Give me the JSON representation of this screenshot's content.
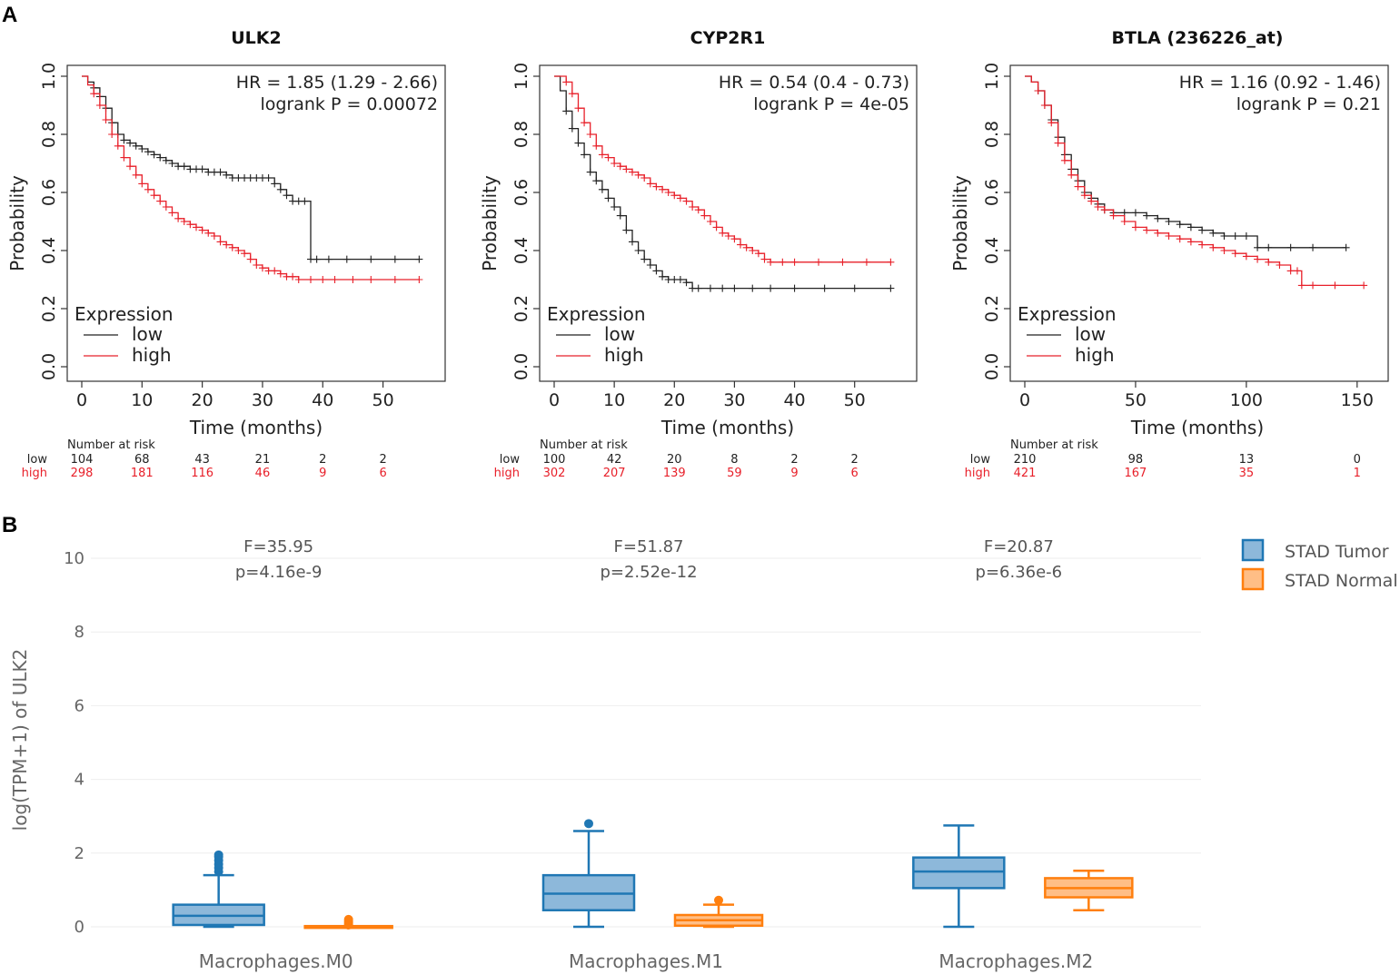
{
  "panels": {
    "a": "A",
    "b": "B"
  },
  "colors": {
    "low": "#222222",
    "high": "#e8202a",
    "tumor": "#1f77b4",
    "tumor_fill": "#8db8da",
    "normal": "#ff7f0e",
    "normal_fill": "#ffbe86"
  },
  "chart_data": [
    {
      "type": "line",
      "title": "ULK2",
      "xlabel": "Time (months)",
      "ylabel": "Probability",
      "xlim": [
        0,
        57
      ],
      "ylim": [
        0,
        1
      ],
      "xticks": [
        0,
        10,
        20,
        30,
        40,
        50
      ],
      "yticks": [
        "0.0",
        "0.2",
        "0.4",
        "0.6",
        "0.8",
        "1.0"
      ],
      "hr_text": "HR = 1.85 (1.29 - 2.66)",
      "p_text": "logrank P = 0.00072",
      "legend_title": "Expression",
      "legend": [
        "low",
        "high"
      ],
      "risk_title": "Number at risk",
      "risk_rows": [
        "low",
        "high"
      ],
      "risk_x": [
        0,
        10,
        20,
        30,
        40,
        50
      ],
      "risk_low": [
        "104",
        "68",
        "43",
        "21",
        "2",
        "2"
      ],
      "risk_high": [
        "298",
        "181",
        "116",
        "46",
        "9",
        "6"
      ],
      "series": [
        {
          "name": "low",
          "x": [
            0,
            1,
            2,
            3,
            4,
            5,
            6,
            7,
            8,
            9,
            10,
            11,
            12,
            13,
            14,
            15,
            16,
            17,
            18,
            19,
            20,
            21,
            22,
            23,
            24,
            25,
            26,
            27,
            28,
            29,
            30,
            31,
            32,
            33,
            34,
            35,
            36,
            37,
            38,
            39,
            41,
            44,
            48,
            52,
            56
          ],
          "y": [
            1.0,
            0.98,
            0.96,
            0.93,
            0.89,
            0.84,
            0.8,
            0.78,
            0.77,
            0.76,
            0.75,
            0.74,
            0.73,
            0.72,
            0.71,
            0.7,
            0.69,
            0.69,
            0.68,
            0.68,
            0.68,
            0.67,
            0.67,
            0.67,
            0.66,
            0.65,
            0.65,
            0.65,
            0.65,
            0.65,
            0.65,
            0.65,
            0.63,
            0.61,
            0.59,
            0.57,
            0.57,
            0.57,
            0.37,
            0.37,
            0.37,
            0.37,
            0.37,
            0.37,
            0.37
          ]
        },
        {
          "name": "high",
          "x": [
            0,
            1,
            2,
            3,
            4,
            5,
            6,
            7,
            8,
            9,
            10,
            11,
            12,
            13,
            14,
            15,
            16,
            17,
            18,
            19,
            20,
            21,
            22,
            23,
            24,
            25,
            26,
            27,
            28,
            29,
            30,
            31,
            32,
            33,
            34,
            35,
            36,
            38,
            40,
            42,
            45,
            48,
            52,
            56
          ],
          "y": [
            1.0,
            0.97,
            0.94,
            0.9,
            0.85,
            0.8,
            0.76,
            0.72,
            0.69,
            0.66,
            0.63,
            0.61,
            0.59,
            0.57,
            0.55,
            0.53,
            0.51,
            0.5,
            0.49,
            0.48,
            0.47,
            0.46,
            0.45,
            0.43,
            0.42,
            0.41,
            0.4,
            0.39,
            0.37,
            0.35,
            0.34,
            0.33,
            0.33,
            0.32,
            0.31,
            0.31,
            0.3,
            0.3,
            0.3,
            0.3,
            0.3,
            0.3,
            0.3,
            0.3
          ]
        }
      ]
    },
    {
      "type": "line",
      "title": "CYP2R1",
      "xlabel": "Time (months)",
      "ylabel": "Probability",
      "xlim": [
        0,
        57
      ],
      "ylim": [
        0,
        1
      ],
      "xticks": [
        0,
        10,
        20,
        30,
        40,
        50
      ],
      "yticks": [
        "0.0",
        "0.2",
        "0.4",
        "0.6",
        "0.8",
        "1.0"
      ],
      "hr_text": "HR = 0.54 (0.4 - 0.73)",
      "p_text": "logrank P = 4e-05",
      "legend_title": "Expression",
      "legend": [
        "low",
        "high"
      ],
      "risk_title": "Number at risk",
      "risk_rows": [
        "low",
        "high"
      ],
      "risk_x": [
        0,
        10,
        20,
        30,
        40,
        50
      ],
      "risk_low": [
        "100",
        "42",
        "20",
        "8",
        "2",
        "2"
      ],
      "risk_high": [
        "302",
        "207",
        "139",
        "59",
        "9",
        "6"
      ],
      "series": [
        {
          "name": "low",
          "x": [
            0,
            1,
            2,
            3,
            4,
            5,
            6,
            7,
            8,
            9,
            10,
            11,
            12,
            13,
            14,
            15,
            16,
            17,
            18,
            19,
            20,
            21,
            22,
            23,
            24,
            26,
            28,
            30,
            33,
            36,
            40,
            45,
            50,
            56
          ],
          "y": [
            1.0,
            0.95,
            0.88,
            0.82,
            0.77,
            0.73,
            0.67,
            0.64,
            0.61,
            0.58,
            0.55,
            0.52,
            0.47,
            0.43,
            0.4,
            0.37,
            0.35,
            0.33,
            0.31,
            0.3,
            0.3,
            0.3,
            0.29,
            0.27,
            0.27,
            0.27,
            0.27,
            0.27,
            0.27,
            0.27,
            0.27,
            0.27,
            0.27,
            0.27
          ]
        },
        {
          "name": "high",
          "x": [
            0,
            1,
            2,
            3,
            4,
            5,
            6,
            7,
            8,
            9,
            10,
            11,
            12,
            13,
            14,
            15,
            16,
            17,
            18,
            19,
            20,
            21,
            22,
            23,
            24,
            25,
            26,
            27,
            28,
            29,
            30,
            31,
            32,
            33,
            34,
            35,
            36,
            38,
            40,
            44,
            48,
            52,
            56
          ],
          "y": [
            1.0,
            1.0,
            0.98,
            0.94,
            0.89,
            0.84,
            0.8,
            0.76,
            0.73,
            0.72,
            0.7,
            0.69,
            0.68,
            0.67,
            0.66,
            0.65,
            0.63,
            0.62,
            0.61,
            0.6,
            0.59,
            0.58,
            0.57,
            0.55,
            0.54,
            0.52,
            0.5,
            0.48,
            0.46,
            0.45,
            0.44,
            0.42,
            0.41,
            0.4,
            0.39,
            0.37,
            0.36,
            0.36,
            0.36,
            0.36,
            0.36,
            0.36,
            0.36
          ]
        }
      ]
    },
    {
      "type": "line",
      "title": "BTLA (236226_at)",
      "xlabel": "Time (months)",
      "ylabel": "Probability",
      "xlim": [
        0,
        155
      ],
      "ylim": [
        0,
        1
      ],
      "xticks": [
        0,
        50,
        100,
        150
      ],
      "yticks": [
        "0.0",
        "0.2",
        "0.4",
        "0.6",
        "0.8",
        "1.0"
      ],
      "hr_text": "HR = 1.16 (0.92 - 1.46)",
      "p_text": "logrank P = 0.21",
      "legend_title": "Expression",
      "legend": [
        "low",
        "high"
      ],
      "risk_title": "Number at risk",
      "risk_rows": [
        "low",
        "high"
      ],
      "risk_x": [
        0,
        50,
        100,
        150
      ],
      "risk_low": [
        "210",
        "98",
        "13",
        "0"
      ],
      "risk_high": [
        "421",
        "167",
        "35",
        "1"
      ],
      "series": [
        {
          "name": "low",
          "x": [
            0,
            3,
            6,
            9,
            12,
            15,
            18,
            21,
            24,
            27,
            30,
            33,
            36,
            40,
            45,
            50,
            55,
            60,
            65,
            70,
            75,
            80,
            85,
            90,
            95,
            100,
            105,
            110,
            120,
            130,
            145
          ],
          "y": [
            1.0,
            0.98,
            0.95,
            0.9,
            0.85,
            0.79,
            0.73,
            0.68,
            0.64,
            0.6,
            0.58,
            0.56,
            0.54,
            0.53,
            0.53,
            0.53,
            0.52,
            0.51,
            0.5,
            0.49,
            0.48,
            0.47,
            0.46,
            0.45,
            0.45,
            0.45,
            0.41,
            0.41,
            0.41,
            0.41,
            0.41
          ]
        },
        {
          "name": "high",
          "x": [
            0,
            3,
            6,
            9,
            12,
            15,
            18,
            21,
            24,
            27,
            30,
            33,
            36,
            40,
            45,
            50,
            55,
            60,
            65,
            70,
            75,
            80,
            85,
            90,
            95,
            100,
            105,
            110,
            115,
            120,
            123,
            125,
            130,
            140,
            153
          ],
          "y": [
            1.0,
            0.98,
            0.95,
            0.9,
            0.84,
            0.77,
            0.71,
            0.66,
            0.62,
            0.59,
            0.57,
            0.55,
            0.54,
            0.52,
            0.5,
            0.48,
            0.47,
            0.46,
            0.45,
            0.44,
            0.43,
            0.42,
            0.41,
            0.4,
            0.39,
            0.38,
            0.37,
            0.36,
            0.35,
            0.33,
            0.33,
            0.28,
            0.28,
            0.28,
            0.28
          ]
        }
      ]
    },
    {
      "type": "box",
      "ylabel": "log(TPM+1) of ULK2",
      "ylim": [
        0,
        10
      ],
      "yticks": [
        "0",
        "2",
        "4",
        "6",
        "8",
        "10"
      ],
      "categories": [
        "Macrophages.M0",
        "Macrophages.M1",
        "Macrophages.M2"
      ],
      "annotations": [
        {
          "f": "F=35.95",
          "p": "p=4.16e-9"
        },
        {
          "f": "F=51.87",
          "p": "p=2.52e-12"
        },
        {
          "f": "F=20.87",
          "p": "p=6.36e-6"
        }
      ],
      "legend": [
        "STAD Tumor",
        "STAD Normal"
      ],
      "series": [
        {
          "name": "STAD Tumor",
          "boxes": [
            {
              "min": 0.0,
              "q1": 0.05,
              "median": 0.3,
              "q3": 0.6,
              "max": 1.4,
              "outliers": [
                1.5,
                1.6,
                1.7,
                1.8,
                1.9,
                1.95
              ]
            },
            {
              "min": 0.0,
              "q1": 0.45,
              "median": 0.9,
              "q3": 1.4,
              "max": 2.6,
              "outliers": [
                2.8
              ]
            },
            {
              "min": 0.0,
              "q1": 1.05,
              "median": 1.5,
              "q3": 1.88,
              "max": 2.75,
              "outliers": []
            }
          ]
        },
        {
          "name": "STAD Normal",
          "boxes": [
            {
              "min": 0.0,
              "q1": 0.0,
              "median": 0.0,
              "q3": 0.02,
              "max": 0.02,
              "outliers": [
                0.05,
                0.1,
                0.15,
                0.2
              ]
            },
            {
              "min": 0.0,
              "q1": 0.03,
              "median": 0.18,
              "q3": 0.32,
              "max": 0.6,
              "outliers": [
                0.72
              ]
            },
            {
              "min": 0.45,
              "q1": 0.8,
              "median": 1.05,
              "q3": 1.32,
              "max": 1.52,
              "outliers": []
            }
          ]
        }
      ]
    }
  ]
}
